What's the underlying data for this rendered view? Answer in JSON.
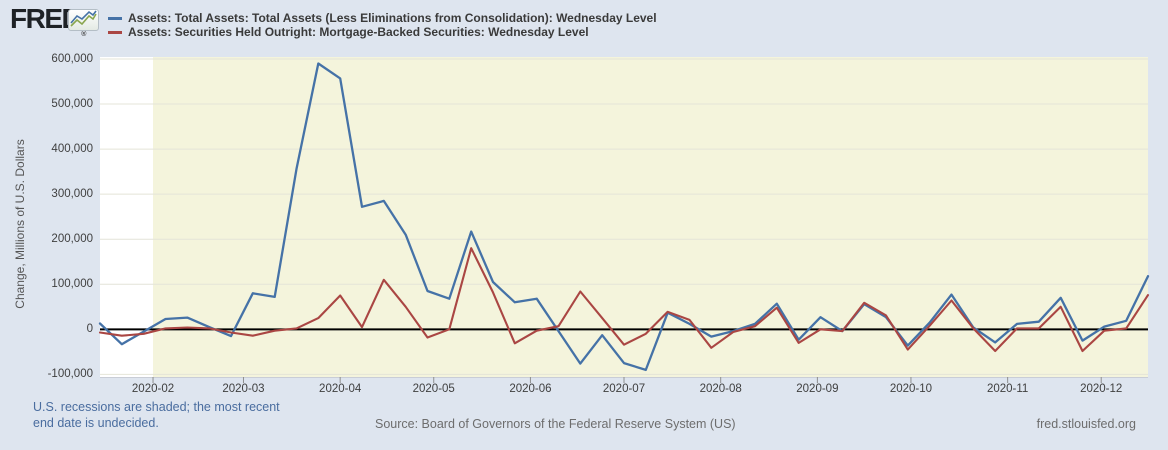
{
  "brand": {
    "logo_text": "FRED",
    "registered_mark": "®"
  },
  "y_axis": {
    "title": "Change, Millions of U.S. Dollars",
    "ticks": [
      {
        "value": 600000,
        "label": "600,000"
      },
      {
        "value": 500000,
        "label": "500,000"
      },
      {
        "value": 400000,
        "label": "400,000"
      },
      {
        "value": 300000,
        "label": "300,000"
      },
      {
        "value": 200000,
        "label": "200,000"
      },
      {
        "value": 100000,
        "label": "100,000"
      },
      {
        "value": 0,
        "label": "0"
      },
      {
        "value": -100000,
        "label": "-100,000"
      }
    ]
  },
  "x_axis": {
    "ticks": [
      {
        "label": "2020-02",
        "date": "2020-02-01"
      },
      {
        "label": "2020-03",
        "date": "2020-03-01"
      },
      {
        "label": "2020-04",
        "date": "2020-04-01"
      },
      {
        "label": "2020-05",
        "date": "2020-05-01"
      },
      {
        "label": "2020-06",
        "date": "2020-06-01"
      },
      {
        "label": "2020-07",
        "date": "2020-07-01"
      },
      {
        "label": "2020-08",
        "date": "2020-08-01"
      },
      {
        "label": "2020-09",
        "date": "2020-09-01"
      },
      {
        "label": "2020-10",
        "date": "2020-10-01"
      },
      {
        "label": "2020-11",
        "date": "2020-11-01"
      },
      {
        "label": "2020-12",
        "date": "2020-12-01"
      }
    ]
  },
  "footer": {
    "recession_note_line1": "U.S. recessions are shaded; the most recent",
    "recession_note_line2": "end date is undecided.",
    "source": "Source: Board of Governors of the Federal Reserve System (US)",
    "site": "fred.stlouisfed.org"
  },
  "chart_data": {
    "type": "line",
    "title": "",
    "ylabel": "Change, Millions of U.S. Dollars",
    "xlabel": "",
    "ylim": [
      -100000,
      600000
    ],
    "y_tick_step": 100000,
    "grid": "horizontal",
    "legend_position": "top",
    "zero_line": true,
    "x_unit": "weekly, Wednesday level, change from previous week",
    "x_range": [
      "2020-01-15",
      "2020-12-16"
    ],
    "recession_shading": {
      "start": "2020-02-01",
      "end": "undecided (extends to right edge)",
      "color": "#f4f4dc"
    },
    "x": [
      "2020-01-15",
      "2020-01-22",
      "2020-01-29",
      "2020-02-05",
      "2020-02-12",
      "2020-02-19",
      "2020-02-26",
      "2020-03-04",
      "2020-03-11",
      "2020-03-18",
      "2020-03-25",
      "2020-04-01",
      "2020-04-08",
      "2020-04-15",
      "2020-04-22",
      "2020-04-29",
      "2020-05-06",
      "2020-05-13",
      "2020-05-20",
      "2020-05-27",
      "2020-06-03",
      "2020-06-10",
      "2020-06-17",
      "2020-06-24",
      "2020-07-01",
      "2020-07-08",
      "2020-07-15",
      "2020-07-22",
      "2020-07-29",
      "2020-08-05",
      "2020-08-12",
      "2020-08-19",
      "2020-08-26",
      "2020-09-02",
      "2020-09-09",
      "2020-09-16",
      "2020-09-23",
      "2020-09-30",
      "2020-10-07",
      "2020-10-14",
      "2020-10-21",
      "2020-10-28",
      "2020-11-04",
      "2020-11-11",
      "2020-11-18",
      "2020-11-25",
      "2020-12-02",
      "2020-12-09",
      "2020-12-16"
    ],
    "series": [
      {
        "name": "Assets: Total Assets: Total Assets (Less Eliminations from Consolidation): Wednesday Level",
        "color": "#4572a7",
        "values": [
          13000,
          -33000,
          -5000,
          23000,
          26000,
          5000,
          -15000,
          80000,
          72000,
          356000,
          590000,
          557000,
          272000,
          285000,
          210000,
          85000,
          68000,
          217000,
          105000,
          60000,
          68000,
          -4000,
          -76000,
          -13000,
          -75000,
          -90000,
          37000,
          12000,
          -16000,
          -4000,
          12000,
          57000,
          -23000,
          27000,
          -4000,
          56000,
          27000,
          -36000,
          15000,
          77000,
          4000,
          -29000,
          12000,
          17000,
          70000,
          -25000,
          6000,
          19000,
          118000
        ]
      },
      {
        "name": "Assets: Securities Held Outright: Mortgage-Backed Securities: Wednesday Level",
        "color": "#aa4643",
        "values": [
          -7000,
          -14000,
          -10000,
          2000,
          4000,
          2000,
          -7000,
          -14000,
          -3000,
          2000,
          25000,
          75000,
          5000,
          110000,
          50000,
          -18000,
          0,
          180000,
          82000,
          -31000,
          -3000,
          7000,
          84000,
          25000,
          -34000,
          -10000,
          39000,
          21000,
          -41000,
          -6000,
          7000,
          48000,
          -30000,
          0,
          -4000,
          59000,
          31000,
          -45000,
          8000,
          64000,
          2000,
          -48000,
          2000,
          2000,
          50000,
          -48000,
          -3000,
          2000,
          76000
        ]
      }
    ]
  }
}
